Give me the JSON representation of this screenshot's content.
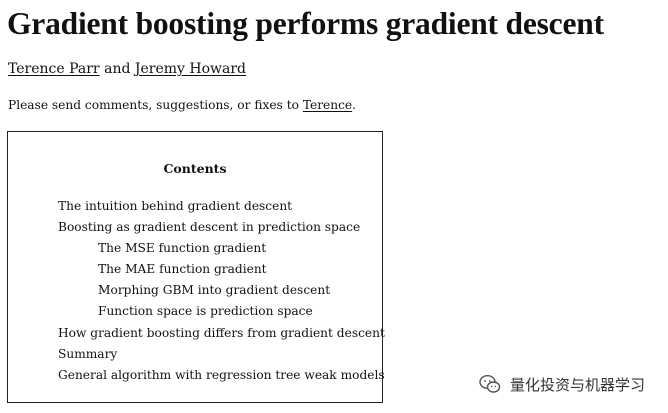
{
  "title": "Gradient boosting performs gradient descent",
  "authors": {
    "author1": "Terence Parr",
    "conjunction": " and ",
    "author2": "Jeremy Howard"
  },
  "notice": {
    "prefix": "Please send comments, suggestions, or fixes to ",
    "link": "Terence",
    "suffix": "."
  },
  "toc": {
    "heading": "Contents",
    "items": [
      {
        "label": "The intuition behind gradient descent",
        "level": 1
      },
      {
        "label": "Boosting as gradient descent in prediction space",
        "level": 1
      },
      {
        "label": "The MSE function gradient",
        "level": 2
      },
      {
        "label": "The MAE function gradient",
        "level": 2
      },
      {
        "label": "Morphing GBM into gradient descent",
        "level": 2
      },
      {
        "label": "Function space is prediction space",
        "level": 2
      },
      {
        "label": "How gradient boosting differs from gradient descent",
        "level": 1
      },
      {
        "label": "Summary",
        "level": 1
      },
      {
        "label": "General algorithm with regression tree weak models",
        "level": 1
      }
    ]
  },
  "watermark": {
    "icon": "wechat-icon",
    "text": "量化投资与机器学习"
  }
}
